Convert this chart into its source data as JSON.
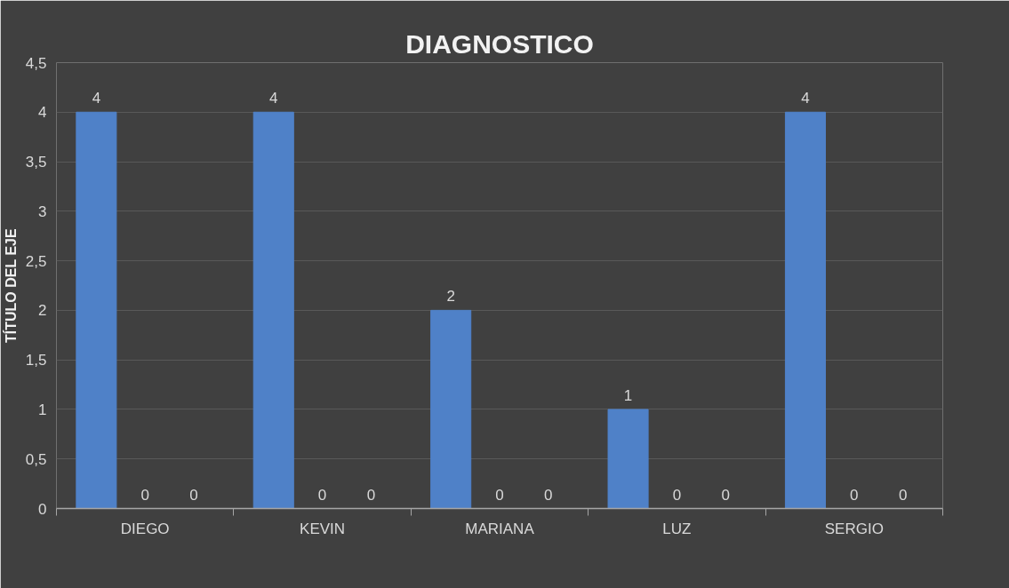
{
  "chart_data": {
    "type": "bar",
    "title": "DIAGNOSTICO",
    "ylabel": "TÍTULO DEL EJE",
    "categories": [
      "DIEGO",
      "KEVIN",
      "MARIANA",
      "LUZ",
      "SERGIO"
    ],
    "series": [
      {
        "color": "#4f81c8",
        "values": [
          4,
          4,
          2,
          1,
          4
        ]
      },
      {
        "color": "#ed7d31",
        "values": [
          0,
          0,
          0,
          0,
          0
        ]
      },
      {
        "color": "#a5a5a5",
        "values": [
          0,
          0,
          0,
          0,
          0
        ]
      }
    ],
    "ylim": [
      0,
      4.5
    ],
    "yticks": [
      0,
      {
        "value": 0.5,
        "label": "0,5"
      },
      1,
      {
        "value": 1.5,
        "label": "1,5"
      },
      2,
      {
        "value": 2.5,
        "label": "2,5"
      },
      3,
      {
        "value": 3.5,
        "label": "3,5"
      },
      4,
      {
        "value": 4.5,
        "label": "4,5"
      }
    ],
    "grid": "y",
    "data_labels": true
  }
}
